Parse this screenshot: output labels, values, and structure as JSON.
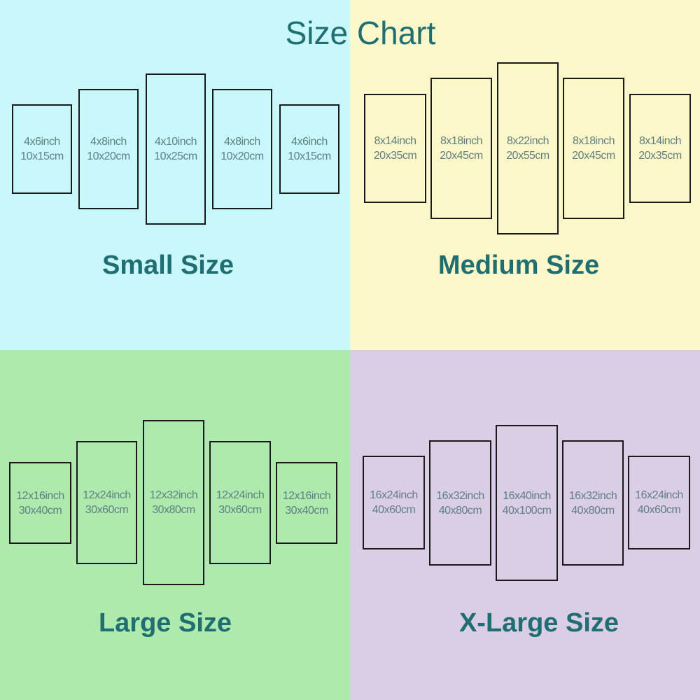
{
  "title": "Size Chart",
  "colors": {
    "small_bg": "#c8f8fc",
    "medium_bg": "#fdf8c9",
    "large_bg": "#aeeaae",
    "xlarge_bg": "#dacde6",
    "heading": "#1f6e72",
    "panel_text": "#5f7f80"
  },
  "sets": [
    {
      "label": "Small Size",
      "panels": [
        {
          "inch": "4x6inch",
          "cm": "10x15cm"
        },
        {
          "inch": "4x8inch",
          "cm": "10x20cm"
        },
        {
          "inch": "4x10inch",
          "cm": "10x25cm"
        },
        {
          "inch": "4x8inch",
          "cm": "10x20cm"
        },
        {
          "inch": "4x6inch",
          "cm": "10x15cm"
        }
      ]
    },
    {
      "label": "Medium Size",
      "panels": [
        {
          "inch": "8x14inch",
          "cm": "20x35cm"
        },
        {
          "inch": "8x18inch",
          "cm": "20x45cm"
        },
        {
          "inch": "8x22inch",
          "cm": "20x55cm"
        },
        {
          "inch": "8x18inch",
          "cm": "20x45cm"
        },
        {
          "inch": "8x14inch",
          "cm": "20x35cm"
        }
      ]
    },
    {
      "label": "Large Size",
      "panels": [
        {
          "inch": "12x16inch",
          "cm": "30x40cm"
        },
        {
          "inch": "12x24inch",
          "cm": "30x60cm"
        },
        {
          "inch": "12x32inch",
          "cm": "30x80cm"
        },
        {
          "inch": "12x24inch",
          "cm": "30x60cm"
        },
        {
          "inch": "12x16inch",
          "cm": "30x40cm"
        }
      ]
    },
    {
      "label": "X-Large Size",
      "panels": [
        {
          "inch": "16x24inch",
          "cm": "40x60cm"
        },
        {
          "inch": "16x32inch",
          "cm": "40x80cm"
        },
        {
          "inch": "16x40inch",
          "cm": "40x100cm"
        },
        {
          "inch": "16x32inch",
          "cm": "40x80cm"
        },
        {
          "inch": "16x24inch",
          "cm": "40x60cm"
        }
      ]
    }
  ]
}
